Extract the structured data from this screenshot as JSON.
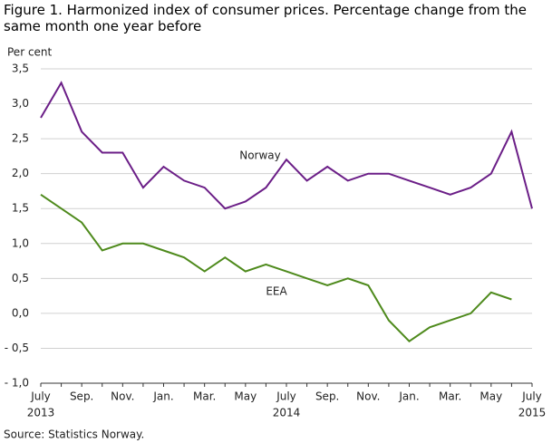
{
  "chart_data": {
    "type": "line",
    "title": "Figure 1. Harmonized index of consumer prices. Percentage change from the same month one year before",
    "y_label": "Per cent",
    "source": "Source: Statistics Norway.",
    "categories": [
      "July",
      null,
      "Sep.",
      null,
      "Nov.",
      null,
      "Jan.",
      null,
      "Mar.",
      null,
      "May",
      null,
      "July",
      null,
      "Sep.",
      null,
      "Nov.",
      null,
      "Jan.",
      null,
      "Mar.",
      null,
      "May",
      null,
      "July"
    ],
    "category_years": [
      "2013",
      null,
      null,
      null,
      null,
      null,
      null,
      null,
      null,
      null,
      null,
      null,
      "2014",
      null,
      null,
      null,
      null,
      null,
      null,
      null,
      null,
      null,
      null,
      null,
      "2015"
    ],
    "series": [
      {
        "name": "Norway",
        "color": "#6b1e87",
        "values": [
          2.8,
          3.3,
          2.6,
          2.3,
          2.3,
          1.8,
          2.1,
          1.9,
          1.8,
          1.5,
          1.6,
          1.8,
          2.2,
          1.9,
          2.1,
          1.9,
          2.0,
          2.0,
          1.9,
          1.8,
          1.7,
          1.8,
          2.0,
          2.6,
          1.5
        ]
      },
      {
        "name": "EEA",
        "color": "#4e8a1c",
        "values": [
          1.7,
          1.5,
          1.3,
          0.9,
          1.0,
          1.0,
          0.9,
          0.8,
          0.6,
          0.8,
          0.6,
          0.7,
          0.6,
          0.5,
          0.4,
          0.5,
          0.4,
          -0.1,
          -0.4,
          -0.2,
          -0.1,
          0.0,
          0.3,
          0.2,
          null
        ]
      }
    ],
    "ylim": [
      -1.0,
      3.5
    ],
    "yticks": [
      {
        "value": -1.0,
        "label": "- 1,0"
      },
      {
        "value": -0.5,
        "label": "- 0,5"
      },
      {
        "value": 0.0,
        "label": "0,0"
      },
      {
        "value": 0.5,
        "label": "0,5"
      },
      {
        "value": 1.0,
        "label": "1,0"
      },
      {
        "value": 1.5,
        "label": "1,5"
      },
      {
        "value": 2.0,
        "label": "2,0"
      },
      {
        "value": 2.5,
        "label": "2,5"
      },
      {
        "value": 3.0,
        "label": "3,0"
      },
      {
        "value": 3.5,
        "label": "3,5"
      }
    ],
    "grid": true
  }
}
